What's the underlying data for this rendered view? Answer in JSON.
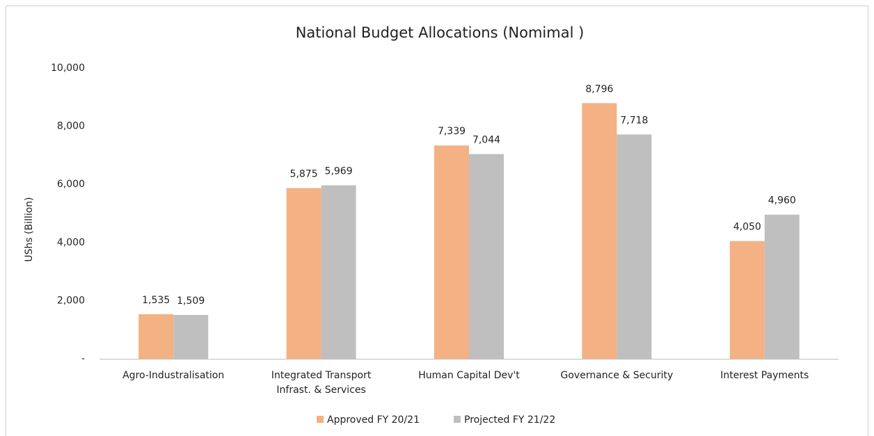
{
  "chart_data": {
    "type": "bar",
    "title": "National Budget Allocations (Nomimal )",
    "y_label": "UShs (Billion)",
    "categories": [
      "Agro-Industralisation",
      "Integrated Transport Infrast. & Services",
      "Human Capital Dev't",
      "Governance & Security",
      "Interest Payments"
    ],
    "series": [
      {
        "name": "Approved FY 20/21",
        "color": "#f4b183",
        "values": [
          1535,
          5875,
          7339,
          8796,
          4050
        ],
        "value_labels": [
          "1,535",
          "5,875",
          "7,339",
          "8,796",
          "4,050"
        ]
      },
      {
        "name": "Projected FY 21/22",
        "color": "#bfbfbf",
        "values": [
          1509,
          5969,
          7044,
          7718,
          4960
        ],
        "value_labels": [
          "1,509",
          "5,969",
          "7,044",
          "7,718",
          "4,960"
        ]
      }
    ],
    "ylim": [
      0,
      10000
    ],
    "yticks": [
      {
        "value": 0,
        "label": "-"
      },
      {
        "value": 2000,
        "label": "2,000"
      },
      {
        "value": 4000,
        "label": "4,000"
      },
      {
        "value": 6000,
        "label": "6,000"
      },
      {
        "value": 8000,
        "label": "8,000"
      },
      {
        "value": 10000,
        "label": "10,000"
      }
    ],
    "grid": false,
    "legend": "bottom"
  }
}
